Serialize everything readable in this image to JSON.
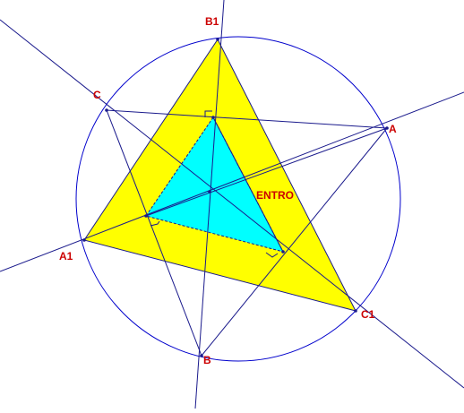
{
  "labels": {
    "b1": "B1",
    "c": "C",
    "a": "A",
    "a1": "A1",
    "c1": "C1",
    "b": "B",
    "center": "ENTRO"
  },
  "colors": {
    "outer_triangle_fill": "#ffff00",
    "inner_triangle_fill": "#00ffff",
    "circle_stroke": "#0000cc",
    "line_stroke": "#1a1a8c",
    "label_color": "#cc0000",
    "background": "#ffffff"
  }
}
